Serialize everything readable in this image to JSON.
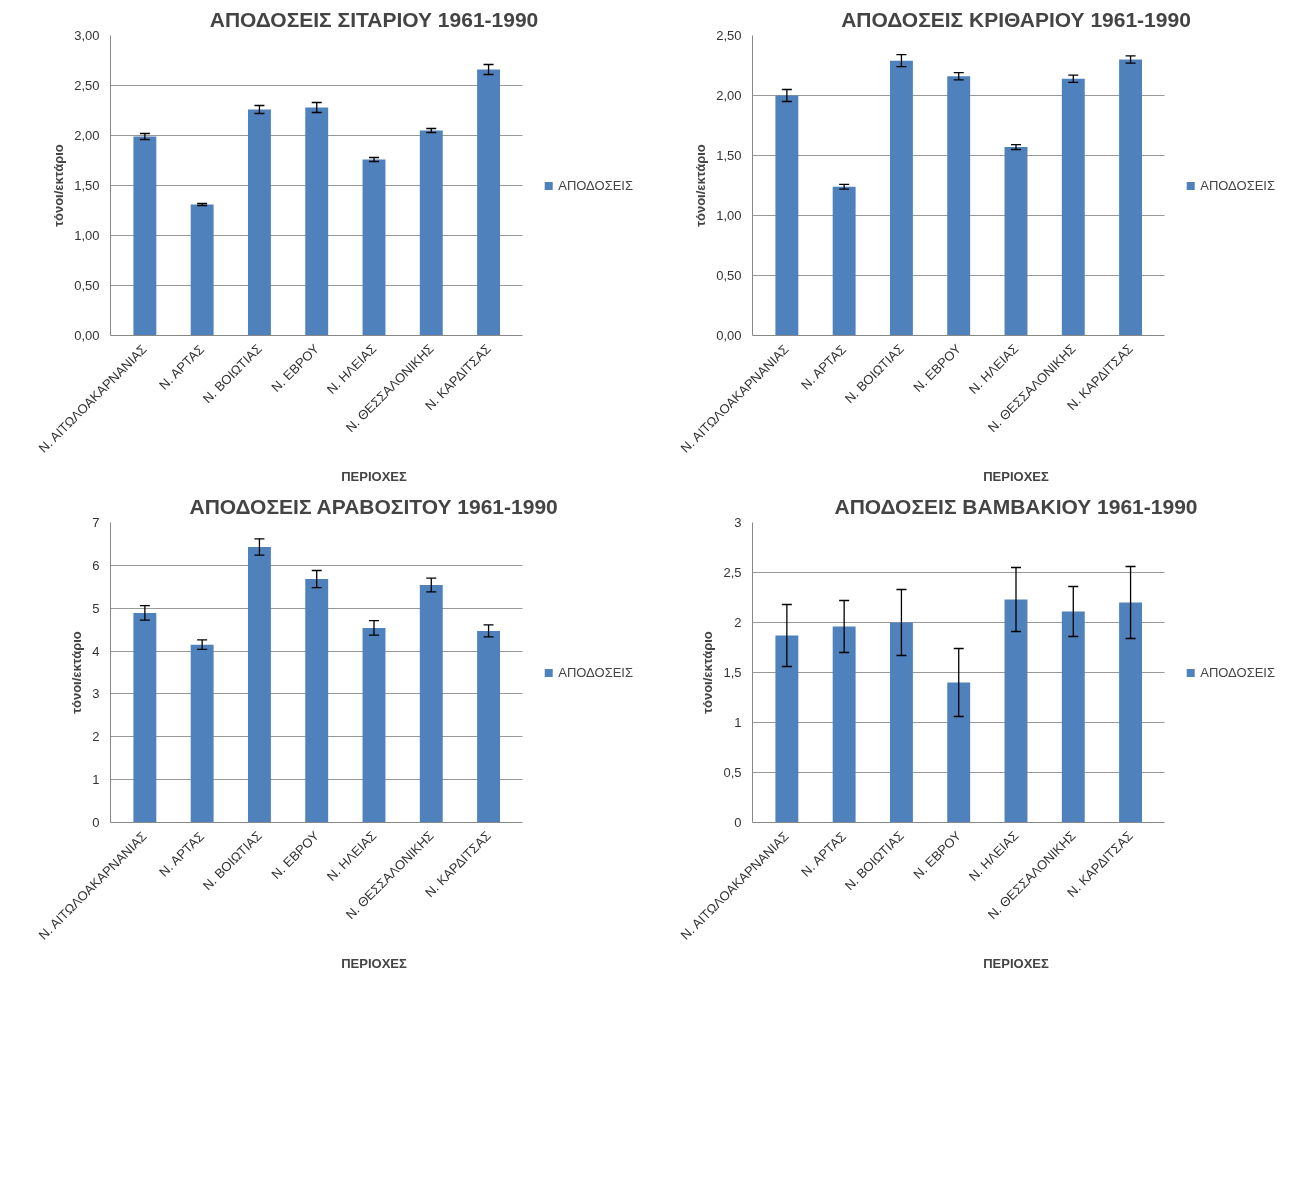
{
  "chart_data": [
    {
      "type": "bar",
      "title": "ΑΠΟΔΟΣΕΙΣ ΣΙΤΑΡΙΟΥ 1961-1990",
      "xlabel": "ΠΕΡΙΟΧΕΣ",
      "ylabel": "τόνοι/εκτάριο",
      "categories": [
        "Ν. ΑΙΤΩΛΟΑΚΑΡΝΑΝΙΑΣ",
        "Ν. ΑΡΤΑΣ",
        "Ν. ΒΟΙΩΤΙΑΣ",
        "Ν. ΕΒΡΟΥ",
        "Ν. ΗΛΕΙΑΣ",
        "Ν. ΘΕΣΣΑΛΟΝΙΚΗΣ",
        "Ν. ΚΑΡΔΙΤΣΑΣ"
      ],
      "series": [
        {
          "name": "ΑΠΟΔΟΣΕΙΣ",
          "color": "#4f81bd",
          "values": [
            1.99,
            1.31,
            2.26,
            2.28,
            1.76,
            2.05,
            2.66
          ],
          "errors": [
            0.03,
            0.01,
            0.04,
            0.05,
            0.02,
            0.02,
            0.05
          ]
        }
      ],
      "ylim": [
        0,
        3
      ],
      "yticks": [
        {
          "value": 0,
          "label": "0,00"
        },
        {
          "value": 0.5,
          "label": "0,50"
        },
        {
          "value": 1,
          "label": "1,00"
        },
        {
          "value": 1.5,
          "label": "1,50"
        },
        {
          "value": 2,
          "label": "2,00"
        },
        {
          "value": 2.5,
          "label": "2,50"
        },
        {
          "value": 3,
          "label": "3,00"
        }
      ],
      "grid": "y",
      "legend": "right"
    },
    {
      "type": "bar",
      "title": "ΑΠΟΔΟΣΕΙΣ ΚΡΙΘΑΡΙΟΥ 1961-1990",
      "xlabel": "ΠΕΡΙΟΧΕΣ",
      "ylabel": "τόνοι/εκτάριο",
      "categories": [
        "Ν. ΑΙΤΩΛΟΑΚΑΡΝΑΝΙΑΣ",
        "Ν. ΑΡΤΑΣ",
        "Ν. ΒΟΙΩΤΙΑΣ",
        "Ν. ΕΒΡΟΥ",
        "Ν. ΗΛΕΙΑΣ",
        "Ν. ΘΕΣΣΑΛΟΝΙΚΗΣ",
        "Ν. ΚΑΡΔΙΤΣΑΣ"
      ],
      "series": [
        {
          "name": "ΑΠΟΔΟΣΕΙΣ",
          "color": "#4f81bd",
          "values": [
            2.0,
            1.24,
            2.29,
            2.16,
            1.57,
            2.14,
            2.3
          ],
          "errors": [
            0.05,
            0.02,
            0.05,
            0.03,
            0.02,
            0.03,
            0.03
          ]
        }
      ],
      "ylim": [
        0,
        2.5
      ],
      "yticks": [
        {
          "value": 0,
          "label": "0,00"
        },
        {
          "value": 0.5,
          "label": "0,50"
        },
        {
          "value": 1,
          "label": "1,00"
        },
        {
          "value": 1.5,
          "label": "1,50"
        },
        {
          "value": 2,
          "label": "2,00"
        },
        {
          "value": 2.5,
          "label": "2,50"
        }
      ],
      "grid": "y",
      "legend": "right"
    },
    {
      "type": "bar",
      "title": "ΑΠΟΔΟΣΕΙΣ ΑΡΑΒΟΣΙΤΟΥ 1961-1990",
      "xlabel": "ΠΕΡΙΟΧΕΣ",
      "ylabel": "τόνοι/εκτάριο",
      "categories": [
        "Ν. ΑΙΤΩΛΟΑΚΑΡΝΑΝΙΑΣ",
        "Ν. ΑΡΤΑΣ",
        "Ν. ΒΟΙΩΤΙΑΣ",
        "Ν. ΕΒΡΟΥ",
        "Ν. ΗΛΕΙΑΣ",
        "Ν. ΘΕΣΣΑΛΟΝΙΚΗΣ",
        "Ν. ΚΑΡΔΙΤΣΑΣ"
      ],
      "series": [
        {
          "name": "ΑΠΟΔΟΣΕΙΣ",
          "color": "#4f81bd",
          "values": [
            4.89,
            4.15,
            6.43,
            5.68,
            4.54,
            5.54,
            4.47
          ],
          "errors": [
            0.17,
            0.11,
            0.19,
            0.2,
            0.17,
            0.16,
            0.14
          ]
        }
      ],
      "ylim": [
        0,
        7
      ],
      "yticks": [
        0,
        1,
        2,
        3,
        4,
        5,
        6,
        7
      ],
      "grid": "y",
      "legend": "right"
    },
    {
      "type": "bar",
      "title": "ΑΠΟΔΟΣΕΙΣ ΒΑΜΒΑΚΙΟΥ 1961-1990",
      "xlabel": "ΠΕΡΙΟΧΕΣ",
      "ylabel": "τόνοι/εκτάριο",
      "categories": [
        "Ν. ΑΙΤΩΛΟΑΚΑΡΝΑΝΙΑΣ",
        "Ν. ΑΡΤΑΣ",
        "Ν. ΒΟΙΩΤΙΑΣ",
        "Ν. ΕΒΡΟΥ",
        "Ν. ΗΛΕΙΑΣ",
        "Ν. ΘΕΣΣΑΛΟΝΙΚΗΣ",
        "Ν. ΚΑΡΔΙΤΣΑΣ"
      ],
      "series": [
        {
          "name": "ΑΠΟΔΟΣΕΙΣ",
          "color": "#4f81bd",
          "values": [
            1.87,
            1.96,
            2.0,
            1.4,
            2.23,
            2.11,
            2.2
          ],
          "errors": [
            0.31,
            0.26,
            0.33,
            0.34,
            0.32,
            0.25,
            0.36
          ]
        }
      ],
      "ylim": [
        0,
        3
      ],
      "yticks": [
        0,
        {
          "value": 0.5,
          "label": "0,5"
        },
        1,
        {
          "value": 1.5,
          "label": "1,5"
        },
        2,
        {
          "value": 2.5,
          "label": "2,5"
        },
        3
      ],
      "grid": "y",
      "legend": "right"
    }
  ]
}
